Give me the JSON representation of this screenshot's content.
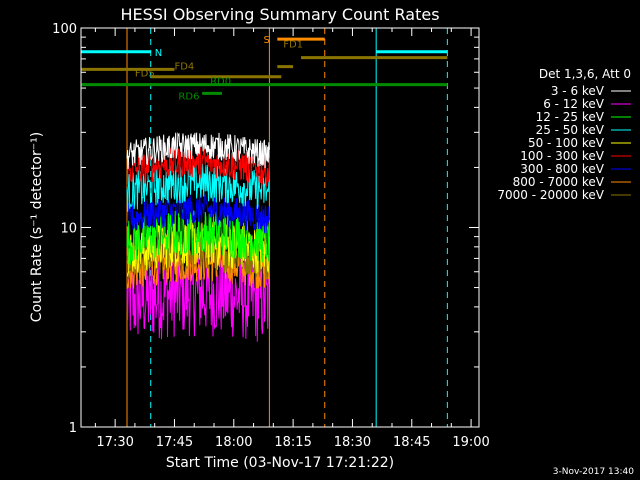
{
  "chart_data": {
    "type": "line",
    "title": "HESSI Observing Summary Count Rates",
    "xlabel": "Start Time (03-Nov-17 17:21:22)",
    "ylabel": "Count Rate (s⁻¹ detector⁻¹)",
    "yscale": "log",
    "ylim": [
      1,
      100
    ],
    "xlim": [
      "17:21:22",
      "19:02:00"
    ],
    "x_ticks": [
      "17:30",
      "17:45",
      "18:00",
      "18:15",
      "18:30",
      "18:45",
      "19:00"
    ],
    "y_ticks": [
      "1",
      "10",
      "100"
    ],
    "legend_title": "Det 1,3,6, Att 0",
    "legend_position": "right",
    "timestamp": "3-Nov-2017 13:40",
    "series": [
      {
        "name": "3 - 6 keV",
        "color": "#ffffff",
        "level": 23,
        "noise": 0.07,
        "start": "17:33",
        "end": "18:09"
      },
      {
        "name": "6 - 12 keV",
        "color": "#ff00ff",
        "level": 4.2,
        "noise": 0.22,
        "start": "17:33",
        "end": "18:09"
      },
      {
        "name": "12 - 25 keV",
        "color": "#00ff00",
        "level": 8.5,
        "noise": 0.12,
        "start": "17:33",
        "end": "18:09"
      },
      {
        "name": "25 - 50 keV",
        "color": "#00ffff",
        "level": 15,
        "noise": 0.1,
        "start": "17:33",
        "end": "18:09"
      },
      {
        "name": "50 - 100 keV",
        "color": "#ffff00",
        "level": 7.5,
        "noise": 0.12,
        "start": "17:33",
        "end": "18:09"
      },
      {
        "name": "100 - 300 keV",
        "color": "#ff0000",
        "level": 19,
        "noise": 0.08,
        "start": "17:33",
        "end": "18:09"
      },
      {
        "name": "300 - 800 keV",
        "color": "#0000ff",
        "level": 11,
        "noise": 0.08,
        "start": "17:33",
        "end": "18:09"
      },
      {
        "name": "800 - 7000 keV",
        "color": "#ff8c00",
        "level": 6,
        "noise": 0.1,
        "start": "17:33",
        "end": "18:09"
      },
      {
        "name": "7000 - 20000 keV",
        "color": "#8b7500",
        "level": 6.8,
        "noise": 0.1,
        "start": "17:33",
        "end": "18:09"
      }
    ],
    "flags": [
      {
        "label": "N",
        "color": "#00ffff",
        "level": 76,
        "segments": [
          [
            "17:21:22",
            "17:39"
          ],
          [
            "18:36",
            "18:54"
          ]
        ]
      },
      {
        "label": "S",
        "color": "#ff8c00",
        "level": 88,
        "segments": [
          [
            "18:11",
            "18:23"
          ]
        ]
      },
      {
        "label": "FD1",
        "color": "#8b7500",
        "level": 71,
        "segments": [
          [
            "18:17",
            "18:54"
          ]
        ]
      },
      {
        "label": "FD4",
        "color": "#8b7500",
        "level": 62,
        "segments": [
          [
            "17:21:22",
            "17:45"
          ]
        ]
      },
      {
        "label": "FD5",
        "color": "#8b7500",
        "level": 57,
        "segments": [
          [
            "17:39",
            "18:12"
          ]
        ]
      },
      {
        "label": "FD1",
        "color": "#8b7500",
        "level": 64,
        "segments": [
          [
            "18:11",
            "18:15"
          ]
        ]
      },
      {
        "label": "RD0",
        "color": "#008b00",
        "level": 52,
        "segments": [
          [
            "17:21:22",
            "18:54"
          ]
        ]
      },
      {
        "label": "RD6",
        "color": "#008b00",
        "level": 47,
        "segments": [
          [
            "17:52",
            "17:57"
          ]
        ]
      }
    ],
    "vlines": [
      {
        "time": "17:21:22",
        "color": "#00ffff",
        "style": "solid"
      },
      {
        "time": "17:33",
        "color": "#ff8c00",
        "style": "solid"
      },
      {
        "time": "17:39",
        "color": "#00ffff",
        "style": "dashed"
      },
      {
        "time": "18:09",
        "color": "#ff8c00",
        "style": "solid"
      },
      {
        "time": "18:23",
        "color": "#ff8c00",
        "style": "dashed"
      },
      {
        "time": "18:36",
        "color": "#00ffff",
        "style": "solid"
      },
      {
        "time": "18:54",
        "color": "#00ffff",
        "style": "dashed"
      }
    ]
  }
}
